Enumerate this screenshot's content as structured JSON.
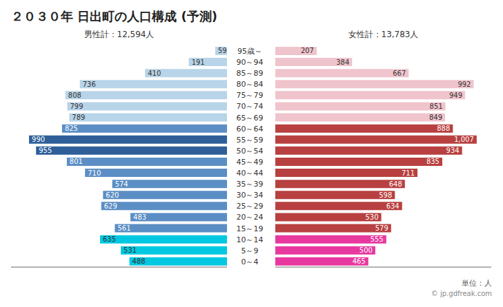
{
  "chart_data": {
    "type": "bar",
    "orientation": "horizontal",
    "title": "２０３０年 日出町の人口構成 (予測)",
    "categories": [
      "95歳～",
      "90～94",
      "85～89",
      "80～84",
      "75～79",
      "70～74",
      "65～69",
      "60～64",
      "55～59",
      "50～54",
      "45～49",
      "40～44",
      "35～39",
      "30～34",
      "25～29",
      "20～24",
      "15～19",
      "10～14",
      "5～9",
      "0～4"
    ],
    "series": [
      {
        "name": "男性計：12,594人",
        "values": [
          59,
          191,
          410,
          736,
          808,
          799,
          789,
          825,
          990,
          955,
          801,
          710,
          574,
          620,
          629,
          483,
          561,
          635,
          531,
          488
        ],
        "colors": [
          "#b8d4e8",
          "#b8d4e8",
          "#b8d4e8",
          "#b8d4e8",
          "#b8d4e8",
          "#b8d4e8",
          "#b8d4e8",
          "#5b8ec4",
          "#2e5f99",
          "#2e5f99",
          "#5b8ec4",
          "#5b8ec4",
          "#5b8ec4",
          "#5b8ec4",
          "#5b8ec4",
          "#5b8ec4",
          "#5b8ec4",
          "#00c8e0",
          "#00c8e0",
          "#00c8e0"
        ]
      },
      {
        "name": "女性計：13,783人",
        "values": [
          207,
          384,
          667,
          992,
          949,
          851,
          849,
          888,
          1007,
          934,
          835,
          711,
          648,
          598,
          634,
          530,
          579,
          555,
          500,
          465
        ],
        "colors": [
          "#f0c4cc",
          "#f0c4cc",
          "#f0c4cc",
          "#f0c4cc",
          "#f0c4cc",
          "#f0c4cc",
          "#f0c4cc",
          "#b84040",
          "#b84040",
          "#b84040",
          "#b84040",
          "#b84040",
          "#b84040",
          "#b84040",
          "#b84040",
          "#b84040",
          "#b84040",
          "#e838a0",
          "#e838a0",
          "#e838a0"
        ],
        "value_labels": [
          "207",
          "384",
          "667",
          "992",
          "949",
          "851",
          "849",
          "888",
          "1,007",
          "934",
          "835",
          "711",
          "648",
          "598",
          "634",
          "530",
          "579",
          "555",
          "500",
          "465"
        ]
      }
    ],
    "xlim": [
      0,
      1080
    ],
    "data_labels": true,
    "tick_labels": "y",
    "grid": false,
    "annotations": [
      "単位：人",
      "© jp.gdfreak.com"
    ]
  }
}
